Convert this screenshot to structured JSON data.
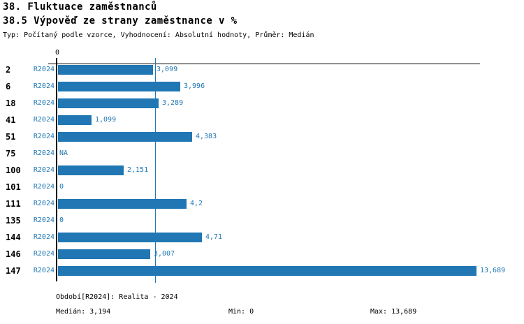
{
  "header": {
    "title": "38. Fluktuace zaměstnanců",
    "subtitle": "38.5 Výpověď ze strany zaměstnance v %",
    "meta": "Typ: Počítaný podle vzorce, Vyhodnocení: Absolutní hodnoty, Průměr: Medián"
  },
  "colors": {
    "accent": "#2077b4",
    "text": "#000000"
  },
  "chart_data": {
    "type": "bar",
    "orientation": "horizontal",
    "title": "38.5 Výpověď ze strany zaměstnance v %",
    "series_name": "R2024",
    "axis": {
      "origin_tick_label": "0",
      "min": 0,
      "max": 13.689,
      "median": 3.194,
      "grid": false
    },
    "categories": [
      "2",
      "6",
      "18",
      "41",
      "51",
      "75",
      "100",
      "101",
      "111",
      "135",
      "144",
      "146",
      "147"
    ],
    "rows": [
      {
        "id": "2",
        "period": "R2024",
        "value_label": "3,099",
        "value": 3.099
      },
      {
        "id": "6",
        "period": "R2024",
        "value_label": "3,996",
        "value": 3.996
      },
      {
        "id": "18",
        "period": "R2024",
        "value_label": "3,289",
        "value": 3.289
      },
      {
        "id": "41",
        "period": "R2024",
        "value_label": "1,099",
        "value": 1.099
      },
      {
        "id": "51",
        "period": "R2024",
        "value_label": "4,383",
        "value": 4.383
      },
      {
        "id": "75",
        "period": "R2024",
        "value_label": "NA",
        "value": null
      },
      {
        "id": "100",
        "period": "R2024",
        "value_label": "2,151",
        "value": 2.151
      },
      {
        "id": "101",
        "period": "R2024",
        "value_label": "0",
        "value": 0
      },
      {
        "id": "111",
        "period": "R2024",
        "value_label": "4,2",
        "value": 4.2
      },
      {
        "id": "135",
        "period": "R2024",
        "value_label": "0",
        "value": 0
      },
      {
        "id": "144",
        "period": "R2024",
        "value_label": "4,71",
        "value": 4.71
      },
      {
        "id": "146",
        "period": "R2024",
        "value_label": "3,007",
        "value": 3.007
      },
      {
        "id": "147",
        "period": "R2024",
        "value_label": "13,689",
        "value": 13.689
      }
    ]
  },
  "footer": {
    "period_label": "Období[R2024]: Realita - 2024",
    "median_label": "Medián: 3,194",
    "min_label": "Min: 0",
    "max_label": "Max: 13,689"
  }
}
